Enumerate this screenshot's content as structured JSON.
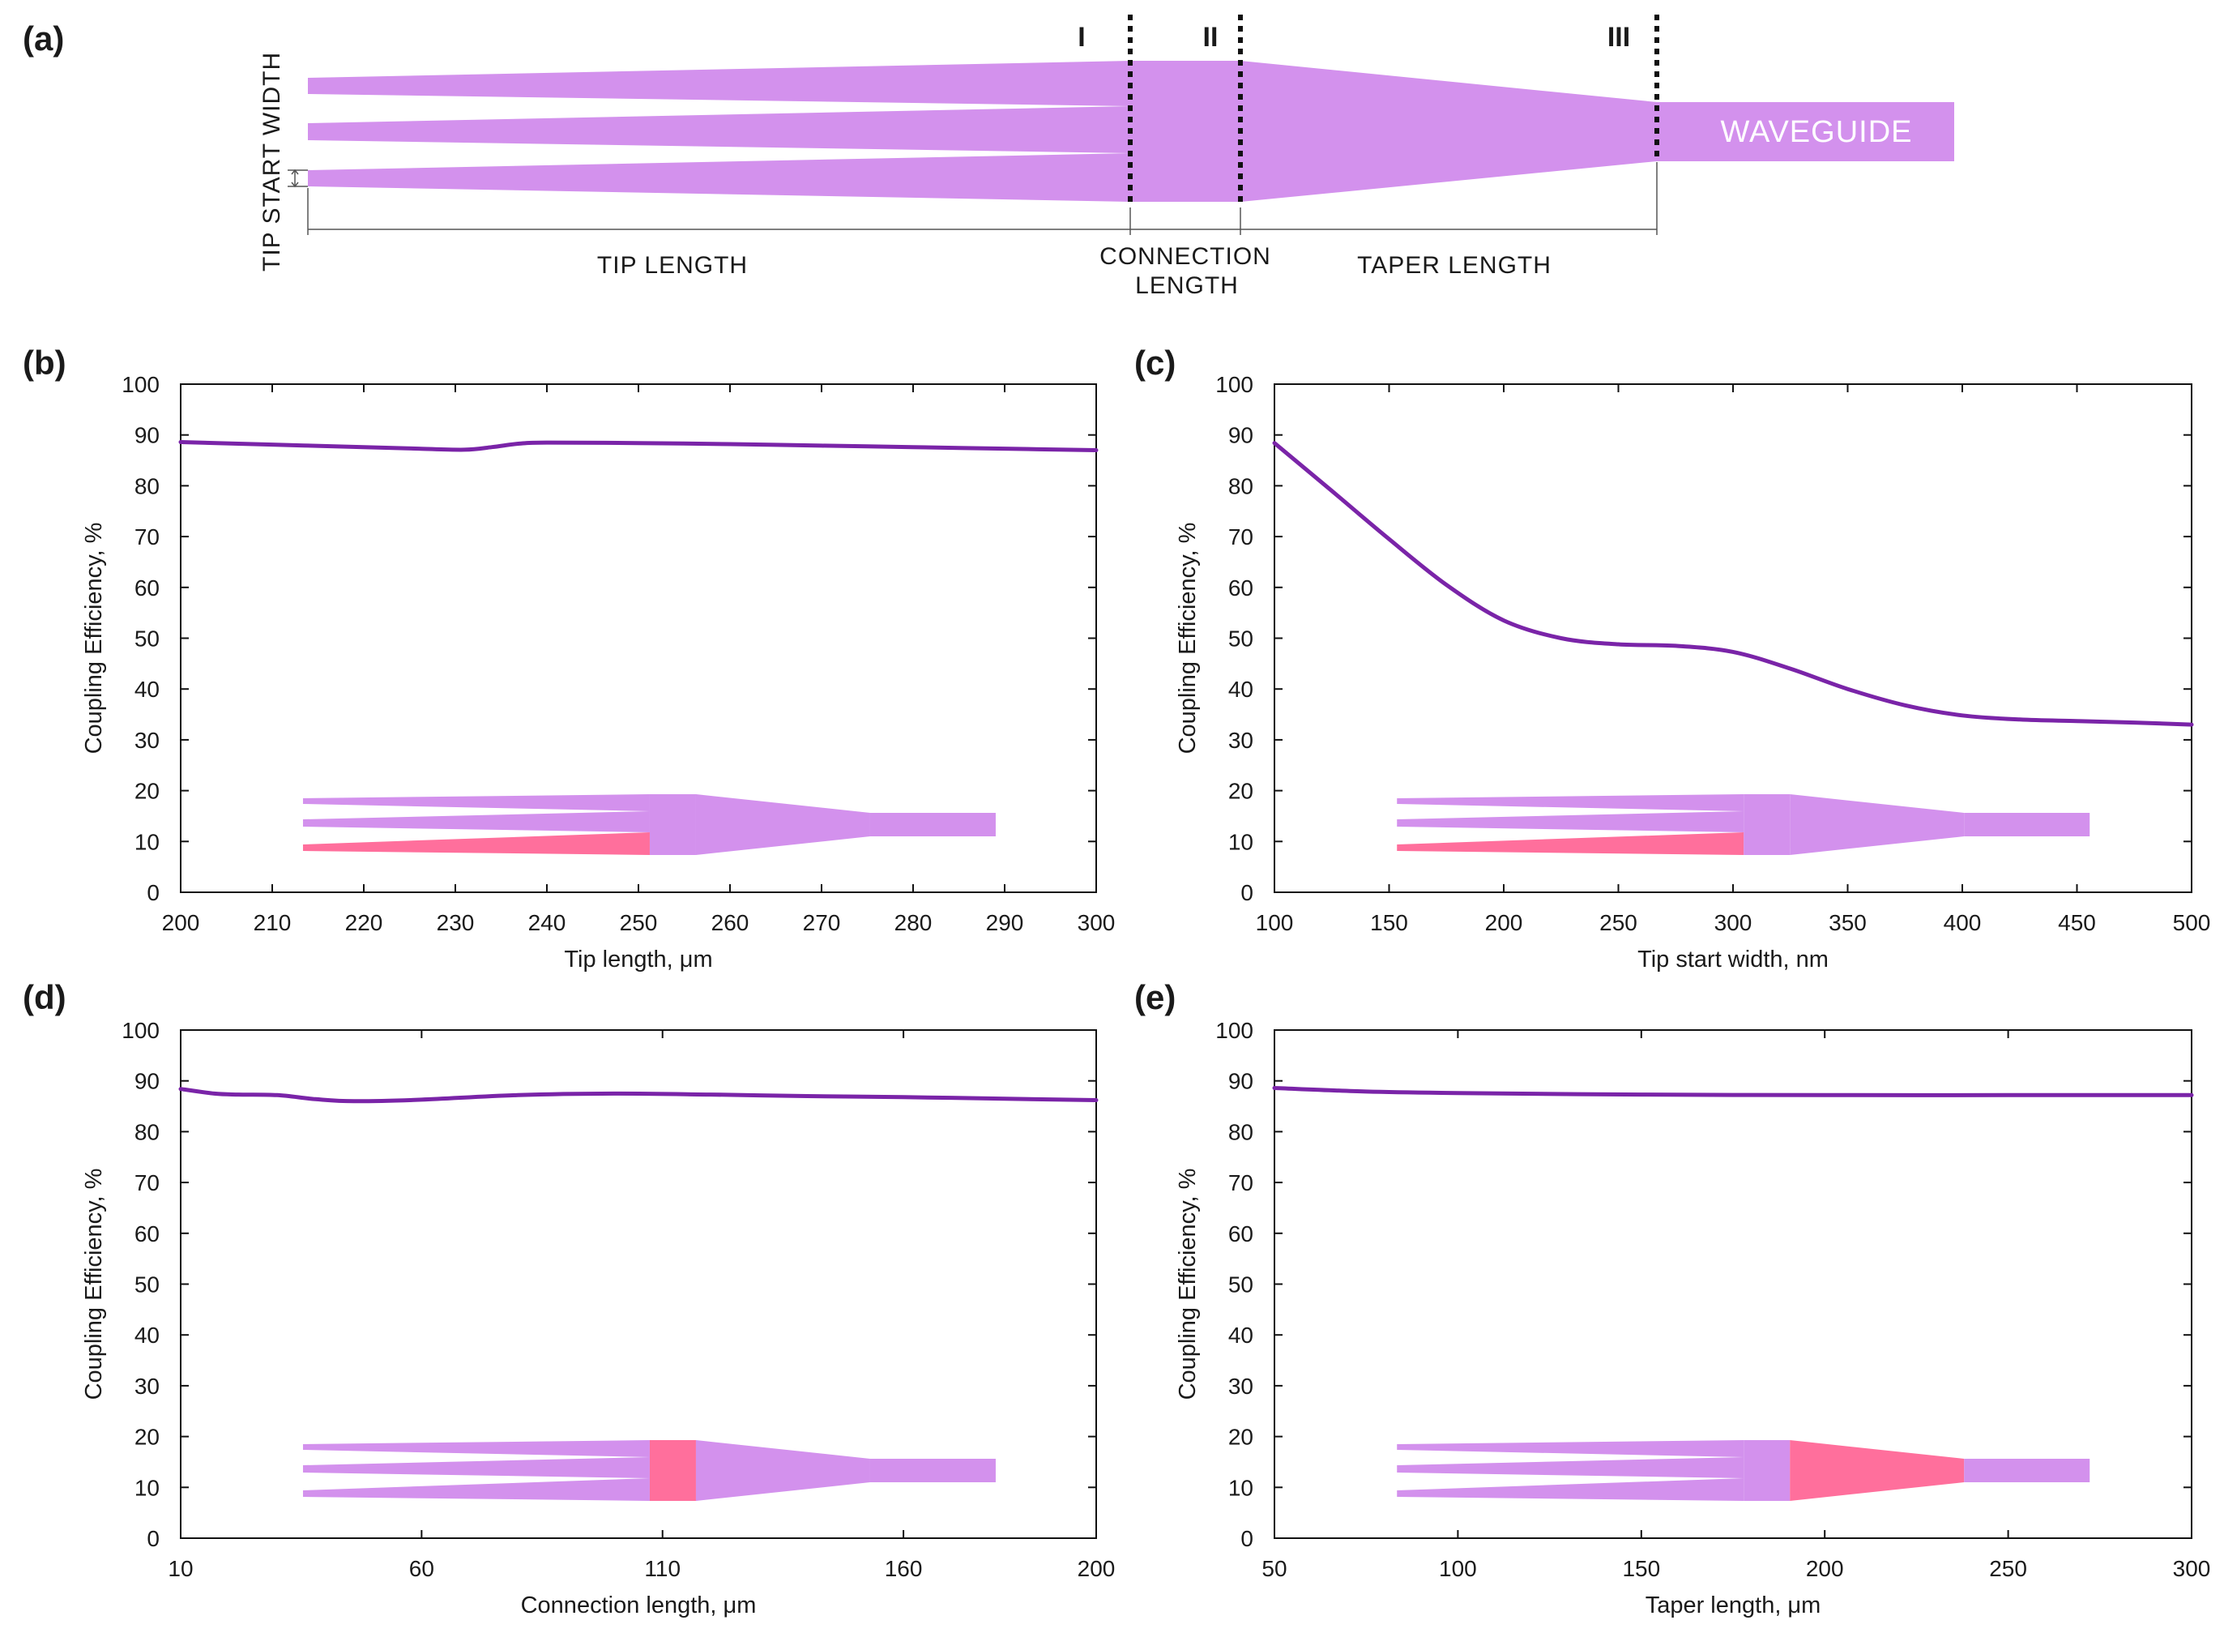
{
  "colors": {
    "taper": "#d391ed",
    "highlight": "#ff6f9c",
    "curve": "#7a24a8",
    "axis": "#111111"
  },
  "schematic": {
    "panel_label": "(a)",
    "section_labels": [
      "I",
      "II",
      "III"
    ],
    "waveguide_label": "WAVEGUIDE",
    "tip_start_width_label": "TIP START WIDTH",
    "tip_length_label": "TIP LENGTH",
    "connection_length_label": [
      "CONNECTION",
      "LENGTH"
    ],
    "taper_length_label": "TAPER LENGTH"
  },
  "chart_data": [
    {
      "panel": "(b)",
      "type": "line",
      "xlabel": "Tip length, μm",
      "ylabel": "Coupling Efficiency, %",
      "xlim": [
        200,
        300
      ],
      "ylim": [
        0,
        100
      ],
      "xticks": [
        200,
        210,
        220,
        230,
        240,
        250,
        260,
        270,
        280,
        290,
        300
      ],
      "yticks": [
        0,
        10,
        20,
        30,
        40,
        50,
        60,
        70,
        80,
        90,
        100
      ],
      "highlight": "tip",
      "series": [
        {
          "name": "Coupling Efficiency",
          "x": [
            200,
            210,
            220,
            226,
            231,
            234,
            237,
            240,
            250,
            260,
            270,
            280,
            290,
            300
          ],
          "y": [
            88.6,
            88.1,
            87.6,
            87.3,
            87.1,
            87.6,
            88.3,
            88.5,
            88.4,
            88.2,
            87.9,
            87.6,
            87.3,
            87.0
          ]
        }
      ]
    },
    {
      "panel": "(c)",
      "type": "line",
      "xlabel": "Tip start width, nm",
      "ylabel": "Coupling Efficiency, %",
      "xlim": [
        100,
        500
      ],
      "ylim": [
        0,
        100
      ],
      "xticks": [
        100,
        150,
        200,
        250,
        300,
        350,
        400,
        450,
        500
      ],
      "yticks": [
        0,
        10,
        20,
        30,
        40,
        50,
        60,
        70,
        80,
        90,
        100
      ],
      "highlight": "tip",
      "series": [
        {
          "name": "Coupling Efficiency",
          "x": [
            100,
            125,
            150,
            175,
            200,
            225,
            250,
            275,
            300,
            325,
            350,
            375,
            400,
            425,
            450,
            475,
            500
          ],
          "y": [
            88.4,
            79,
            69.5,
            60.5,
            53.5,
            50,
            48.8,
            48.5,
            47.3,
            44,
            40,
            36.8,
            34.8,
            34,
            33.7,
            33.4,
            33.0
          ]
        }
      ]
    },
    {
      "panel": "(d)",
      "type": "line",
      "xlabel": "Connection length, μm",
      "ylabel": "Coupling Efficiency, %",
      "xlim": [
        10,
        200
      ],
      "ylim": [
        0,
        100
      ],
      "xticks": [
        10,
        60,
        110,
        160,
        200
      ],
      "yticks": [
        0,
        10,
        20,
        30,
        40,
        50,
        60,
        70,
        80,
        90,
        100
      ],
      "highlight": "connection",
      "series": [
        {
          "name": "Coupling Efficiency",
          "x": [
            10,
            17,
            22,
            30,
            38,
            46,
            60,
            80,
            100,
            120,
            140,
            160,
            180,
            200
          ],
          "y": [
            88.4,
            87.5,
            87.3,
            87.2,
            86.4,
            86.0,
            86.3,
            87.2,
            87.5,
            87.3,
            87.0,
            86.8,
            86.5,
            86.2
          ]
        }
      ]
    },
    {
      "panel": "(e)",
      "type": "line",
      "xlabel": "Taper length, μm",
      "ylabel": "Coupling Efficiency, %",
      "xlim": [
        50,
        300
      ],
      "ylim": [
        0,
        100
      ],
      "xticks": [
        50,
        100,
        150,
        200,
        250,
        300
      ],
      "yticks": [
        0,
        10,
        20,
        30,
        40,
        50,
        60,
        70,
        80,
        90,
        100
      ],
      "highlight": "taper",
      "series": [
        {
          "name": "Coupling Efficiency",
          "x": [
            50,
            75,
            100,
            150,
            200,
            250,
            300
          ],
          "y": [
            88.6,
            87.9,
            87.6,
            87.3,
            87.2,
            87.2,
            87.2
          ]
        }
      ]
    }
  ]
}
